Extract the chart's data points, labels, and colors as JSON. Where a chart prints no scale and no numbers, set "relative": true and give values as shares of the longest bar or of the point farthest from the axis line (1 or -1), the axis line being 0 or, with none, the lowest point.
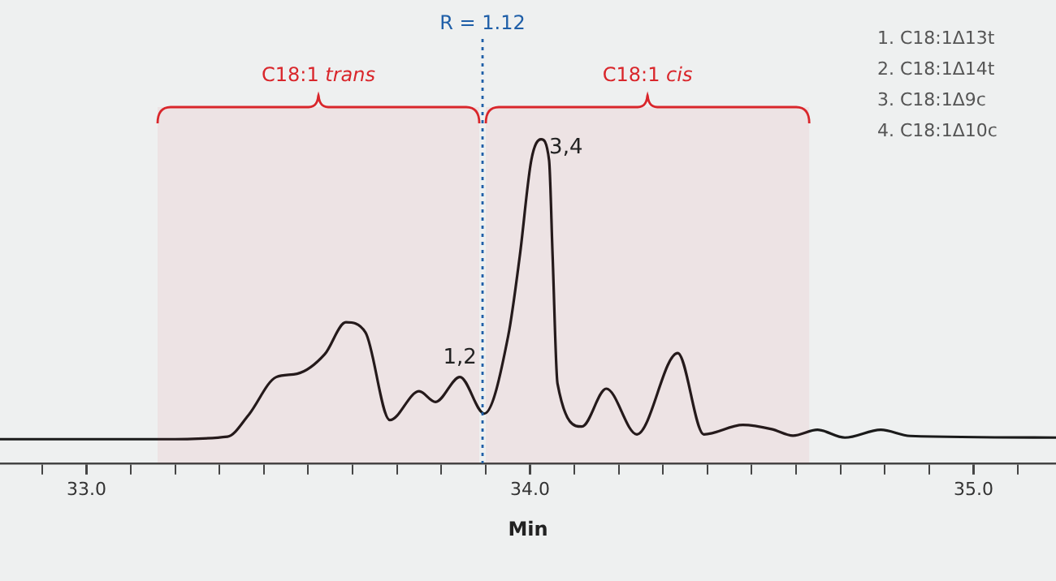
{
  "chart_data": {
    "type": "line",
    "relative": true,
    "xlabel": "Min",
    "x": [
      32.805,
      33.171,
      33.318,
      33.365,
      33.428,
      33.475,
      33.537,
      33.585,
      33.629,
      33.684,
      33.75,
      33.787,
      33.842,
      33.897,
      33.951,
      33.977,
      34.003,
      34.025,
      34.043,
      34.051,
      34.062,
      34.117,
      34.172,
      34.241,
      34.333,
      34.392,
      34.48,
      34.545,
      34.593,
      34.648,
      34.71,
      34.791,
      34.857,
      35.186
    ],
    "series": [
      {
        "color": "#1a1a1a",
        "values": [
          0.074,
          0.074,
          0.082,
          0.148,
          0.266,
          0.276,
          0.336,
          0.435,
          0.404,
          0.133,
          0.222,
          0.189,
          0.266,
          0.153,
          0.394,
          0.64,
          0.936,
          1.0,
          0.936,
          0.64,
          0.246,
          0.113,
          0.23,
          0.089,
          0.34,
          0.089,
          0.118,
          0.105,
          0.085,
          0.103,
          0.079,
          0.103,
          0.084,
          0.079
        ]
      }
    ],
    "xlim": [
      32.805,
      35.186
    ],
    "xticks": [
      {
        "value": 32.9,
        "label": null
      },
      {
        "value": 33,
        "label": "33.0"
      },
      {
        "value": 33.1,
        "label": null
      },
      {
        "value": 33.2,
        "label": null
      },
      {
        "value": 33.3,
        "label": null
      },
      {
        "value": 33.4,
        "label": null
      },
      {
        "value": 33.5,
        "label": null
      },
      {
        "value": 33.6,
        "label": null
      },
      {
        "value": 33.7,
        "label": null
      },
      {
        "value": 33.8,
        "label": null
      },
      {
        "value": 33.9,
        "label": null
      },
      {
        "value": 34,
        "label": "34.0"
      },
      {
        "value": 34.1,
        "label": null
      },
      {
        "value": 34.2,
        "label": null
      },
      {
        "value": 34.3,
        "label": null
      },
      {
        "value": 34.4,
        "label": null
      },
      {
        "value": 34.5,
        "label": null
      },
      {
        "value": 34.6,
        "label": null
      },
      {
        "value": 34.7,
        "label": null
      },
      {
        "value": 34.8,
        "label": null
      },
      {
        "value": 34.9,
        "label": null
      },
      {
        "value": 35,
        "label": "35.0"
      },
      {
        "value": 35.1,
        "label": null
      }
    ],
    "ref_lines": [
      {
        "axis": "x",
        "value": 33.893,
        "color": "#1f5fa8",
        "line_style": "dotted"
      }
    ],
    "bands": [
      {
        "axis": "x",
        "from": 33.153,
        "to": 33.893,
        "label": "C18:1 trans",
        "color": "#d9262b"
      },
      {
        "axis": "x",
        "from": 33.893,
        "to": 34.637,
        "label": "C18:1 cis",
        "color": "#d9262b"
      }
    ],
    "annotations": [
      "R = 1.12",
      {
        "text": "1,2",
        "x": 33.842,
        "y": 0.266
      },
      {
        "text": "3,4",
        "x": 34.025,
        "y": 1.0
      },
      "1. C18:1Δ13t",
      "2. C18:1Δ14t",
      "3. C18:1Δ9c",
      "4. C18:1Δ10c"
    ],
    "grid": false,
    "legend": false,
    "marker": "none",
    "line_style": "solid"
  }
}
